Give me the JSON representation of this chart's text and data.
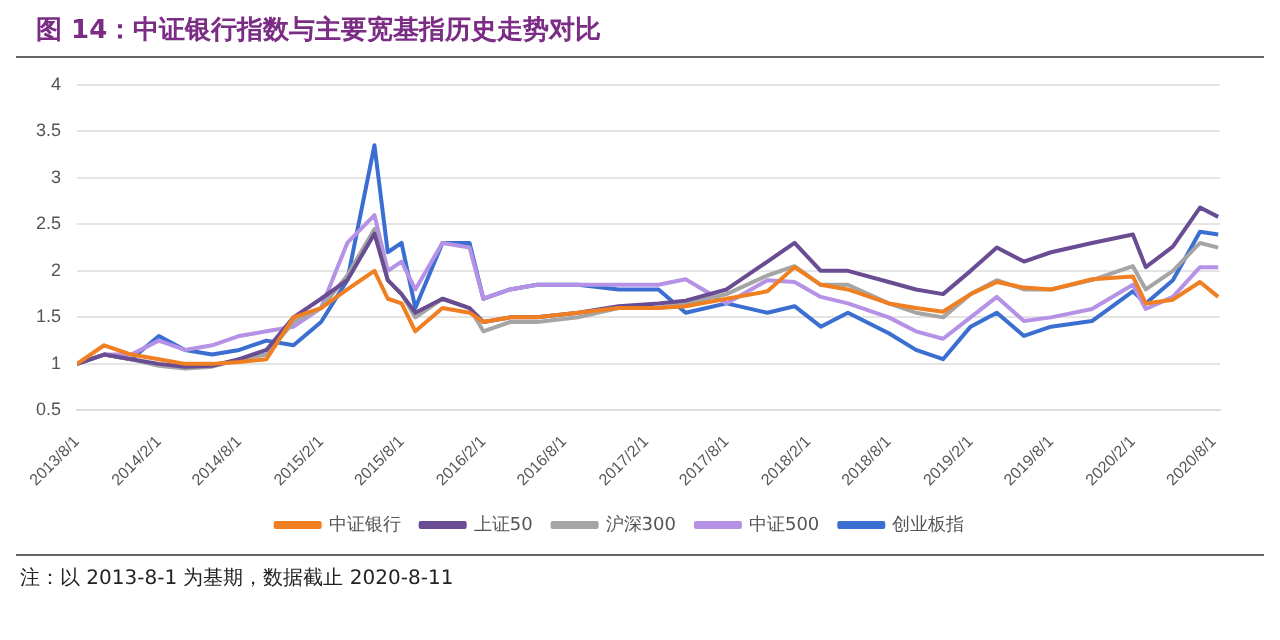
{
  "chart_data": {
    "type": "line",
    "title": "图 14：中证银行指数与主要宽基指历史走势对比",
    "x": [
      "2013-08",
      "2013-10",
      "2013-12",
      "2014-02",
      "2014-04",
      "2014-06",
      "2014-08",
      "2014-10",
      "2014-12",
      "2015-02",
      "2015-04",
      "2015-06",
      "2015-07",
      "2015-08",
      "2015-09",
      "2015-11",
      "2016-01",
      "2016-02",
      "2016-04",
      "2016-06",
      "2016-09",
      "2016-12",
      "2017-03",
      "2017-05",
      "2017-08",
      "2017-11",
      "2018-01",
      "2018-03",
      "2018-05",
      "2018-08",
      "2018-10",
      "2018-12",
      "2019-02",
      "2019-04",
      "2019-06",
      "2019-08",
      "2019-11",
      "2020-02",
      "2020-03",
      "2020-05",
      "2020-07",
      "2020-08-11"
    ],
    "series": [
      {
        "name": "中证银行",
        "color": "#f07f22",
        "values": [
          1.0,
          1.2,
          1.1,
          1.05,
          1.0,
          1.0,
          1.02,
          1.05,
          1.5,
          1.6,
          1.8,
          2.0,
          1.7,
          1.65,
          1.35,
          1.6,
          1.55,
          1.45,
          1.5,
          1.5,
          1.55,
          1.6,
          1.6,
          1.62,
          1.7,
          1.78,
          2.04,
          1.85,
          1.8,
          1.65,
          1.6,
          1.56,
          1.75,
          1.88,
          1.82,
          1.8,
          1.91,
          1.94,
          1.65,
          1.69,
          1.88,
          1.72
        ]
      },
      {
        "name": "上证50",
        "color": "#6a4c93",
        "values": [
          1.0,
          1.1,
          1.05,
          1.0,
          0.97,
          0.98,
          1.05,
          1.15,
          1.5,
          1.7,
          1.9,
          2.4,
          1.9,
          1.75,
          1.55,
          1.7,
          1.6,
          1.45,
          1.5,
          1.5,
          1.55,
          1.62,
          1.65,
          1.68,
          1.8,
          2.1,
          2.3,
          2.0,
          2.0,
          1.88,
          1.8,
          1.75,
          2.0,
          2.25,
          2.1,
          2.2,
          2.3,
          2.39,
          2.04,
          2.26,
          2.68,
          2.58
        ]
      },
      {
        "name": "沪深300",
        "color": "#a5a5a5",
        "values": [
          1.0,
          1.1,
          1.05,
          0.98,
          0.95,
          0.97,
          1.05,
          1.1,
          1.45,
          1.6,
          1.95,
          2.45,
          1.9,
          1.75,
          1.5,
          1.7,
          1.6,
          1.35,
          1.45,
          1.45,
          1.5,
          1.6,
          1.6,
          1.65,
          1.75,
          1.95,
          2.05,
          1.85,
          1.85,
          1.65,
          1.55,
          1.5,
          1.75,
          1.9,
          1.8,
          1.8,
          1.9,
          2.05,
          1.8,
          2.0,
          2.3,
          2.25
        ]
      },
      {
        "name": "中证500",
        "color": "#b592e6",
        "values": [
          1.0,
          1.1,
          1.1,
          1.25,
          1.15,
          1.2,
          1.3,
          1.35,
          1.4,
          1.6,
          2.3,
          2.6,
          2.0,
          2.1,
          1.8,
          2.3,
          2.25,
          1.7,
          1.8,
          1.85,
          1.85,
          1.85,
          1.85,
          1.91,
          1.65,
          1.9,
          1.88,
          1.72,
          1.65,
          1.5,
          1.35,
          1.27,
          1.5,
          1.72,
          1.46,
          1.5,
          1.59,
          1.85,
          1.59,
          1.72,
          2.04,
          2.04
        ]
      },
      {
        "name": "创业板指",
        "color": "#3a6fd1",
        "values": [
          1.0,
          1.1,
          1.05,
          1.3,
          1.15,
          1.1,
          1.15,
          1.25,
          1.2,
          1.45,
          1.9,
          3.35,
          2.2,
          2.3,
          1.6,
          2.3,
          2.3,
          1.7,
          1.8,
          1.85,
          1.85,
          1.8,
          1.8,
          1.55,
          1.65,
          1.55,
          1.62,
          1.4,
          1.55,
          1.33,
          1.15,
          1.05,
          1.4,
          1.55,
          1.3,
          1.4,
          1.46,
          1.78,
          1.65,
          1.9,
          2.42,
          2.39
        ]
      }
    ],
    "xlim": [
      "2013-08-01",
      "2020-08-15"
    ],
    "xticks": [
      {
        "value": "2013-08-01",
        "label": "2013/8/1"
      },
      {
        "value": "2014-02-01",
        "label": "2014/2/1"
      },
      {
        "value": "2014-08-01",
        "label": "2014/8/1"
      },
      {
        "value": "2015-02-01",
        "label": "2015/2/1"
      },
      {
        "value": "2015-08-01",
        "label": "2015/8/1"
      },
      {
        "value": "2016-02-01",
        "label": "2016/2/1"
      },
      {
        "value": "2016-08-01",
        "label": "2016/8/1"
      },
      {
        "value": "2017-02-01",
        "label": "2017/2/1"
      },
      {
        "value": "2017-08-01",
        "label": "2017/8/1"
      },
      {
        "value": "2018-02-01",
        "label": "2018/2/1"
      },
      {
        "value": "2018-08-01",
        "label": "2018/8/1"
      },
      {
        "value": "2019-02-01",
        "label": "2019/2/1"
      },
      {
        "value": "2019-08-01",
        "label": "2019/8/1"
      },
      {
        "value": "2020-02-01",
        "label": "2020/2/1"
      },
      {
        "value": "2020-08-01",
        "label": "2020/8/1"
      }
    ],
    "ylim": [
      0.5,
      4
    ],
    "yticks": [
      0.5,
      1,
      1.5,
      2,
      2.5,
      3,
      3.5,
      4
    ],
    "grid": "y",
    "legend": "bottom",
    "marker": "none",
    "line_style": "solid",
    "annotations": [
      "注：以 2013-8-1 为基期，数据截止 2020-8-11"
    ]
  }
}
